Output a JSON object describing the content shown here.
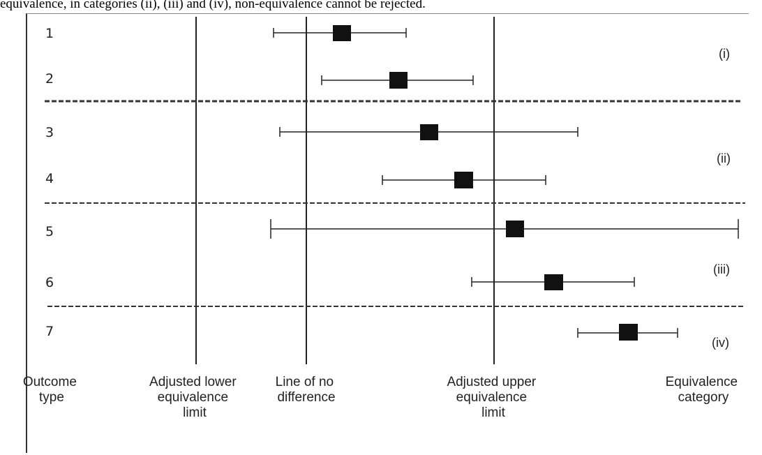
{
  "caption_fragment": "equivalence, in categories (ii), (iii) and (iv), non-equivalence cannot be rejected.",
  "reference_lines": [
    {
      "label": [
        "Adjusted lower",
        "equivalence",
        "limit"
      ]
    },
    {
      "label": [
        "Line of no",
        "difference"
      ]
    },
    {
      "label": [
        "Adjusted upper",
        "equivalence",
        "limit"
      ]
    }
  ],
  "row_header": [
    "Outcome",
    "type"
  ],
  "category_header": [
    "Equivalence",
    "category"
  ],
  "outcomes": [
    {
      "label": "1"
    },
    {
      "label": "2"
    },
    {
      "label": "3"
    },
    {
      "label": "4"
    },
    {
      "label": "5"
    },
    {
      "label": "6"
    },
    {
      "label": "7"
    }
  ],
  "categories": [
    {
      "label": "(i)"
    },
    {
      "label": "(ii)"
    },
    {
      "label": "(iii)"
    },
    {
      "label": "(iv)"
    }
  ],
  "colors": {
    "marker": "#111111",
    "line": "#222222",
    "divider": "#333333"
  }
}
